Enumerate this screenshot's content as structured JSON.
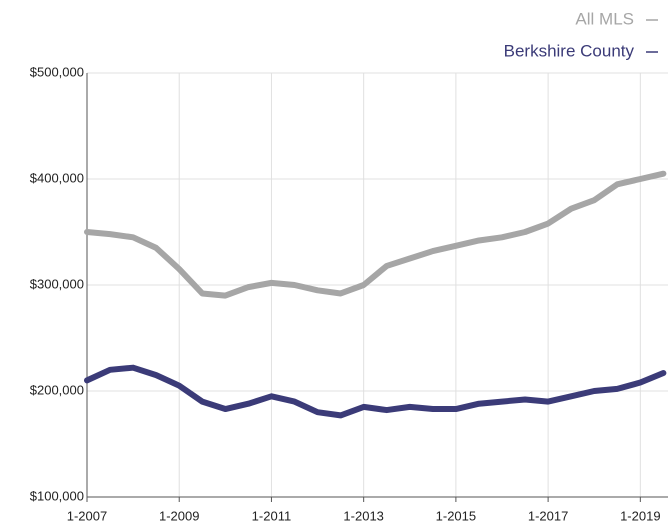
{
  "chart_data": {
    "type": "line",
    "x": [
      2007,
      2007.5,
      2008,
      2008.5,
      2009,
      2009.5,
      2010,
      2010.5,
      2011,
      2011.5,
      2012,
      2012.5,
      2013,
      2013.5,
      2014,
      2014.5,
      2015,
      2015.5,
      2016,
      2016.5,
      2017,
      2017.5,
      2018,
      2018.5,
      2019,
      2019.5
    ],
    "series": [
      {
        "name": "All MLS",
        "color": "#a6a6a6",
        "values": [
          350000,
          348000,
          345000,
          335000,
          315000,
          292000,
          290000,
          298000,
          302000,
          300000,
          295000,
          292000,
          300000,
          318000,
          325000,
          332000,
          337000,
          342000,
          345000,
          350000,
          358000,
          372000,
          380000,
          395000,
          400000,
          405000
        ]
      },
      {
        "name": "Berkshire County",
        "color": "#3b3b78",
        "values": [
          210000,
          220000,
          222000,
          215000,
          205000,
          190000,
          183000,
          188000,
          195000,
          190000,
          180000,
          177000,
          185000,
          182000,
          185000,
          183000,
          183000,
          188000,
          190000,
          192000,
          190000,
          195000,
          200000,
          202000,
          208000,
          217000
        ]
      }
    ],
    "xlim": [
      2007,
      2019.6
    ],
    "xticks": [
      {
        "value": 2007,
        "label": "1-2007"
      },
      {
        "value": 2009,
        "label": "1-2009"
      },
      {
        "value": 2011,
        "label": "1-2011"
      },
      {
        "value": 2013,
        "label": "1-2013"
      },
      {
        "value": 2015,
        "label": "1-2015"
      },
      {
        "value": 2017,
        "label": "1-2017"
      },
      {
        "value": 2019,
        "label": "1-2019"
      }
    ],
    "ylim": [
      100000,
      500000
    ],
    "yticks": [
      {
        "value": 100000,
        "label": "$100,000"
      },
      {
        "value": 200000,
        "label": "$200,000"
      },
      {
        "value": 300000,
        "label": "$300,000"
      },
      {
        "value": 400000,
        "label": "$400,000"
      },
      {
        "value": 500000,
        "label": "$500,000"
      }
    ],
    "grid": true,
    "legend": "top-right"
  }
}
